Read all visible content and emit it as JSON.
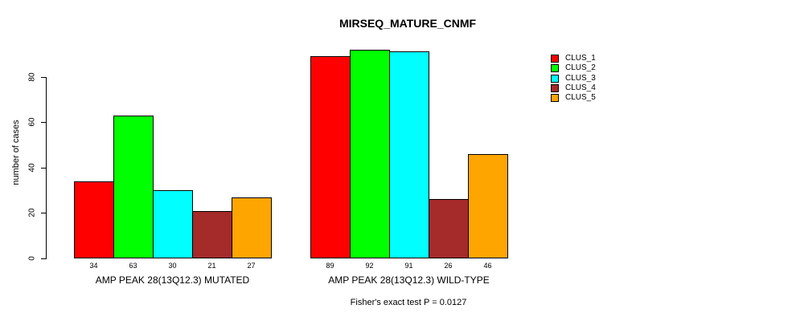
{
  "chart_data": {
    "type": "bar",
    "title": "MIRSEQ_MATURE_CNMF",
    "ylabel": "number of cases",
    "xlabel": "",
    "ylim": [
      0,
      92
    ],
    "yticks": [
      0,
      20,
      40,
      60,
      80
    ],
    "grid": false,
    "legend_position": "right",
    "categories": [
      "AMP PEAK 28(13Q12.3) MUTATED",
      "AMP PEAK 28(13Q12.3) WILD-TYPE"
    ],
    "series": [
      {
        "name": "CLUS_1",
        "color": "#ff0000",
        "values": [
          34,
          89
        ]
      },
      {
        "name": "CLUS_2",
        "color": "#00ff00",
        "values": [
          63,
          92
        ]
      },
      {
        "name": "CLUS_3",
        "color": "#00ffff",
        "values": [
          30,
          91
        ]
      },
      {
        "name": "CLUS_4",
        "color": "#a52a2a",
        "values": [
          21,
          26
        ]
      },
      {
        "name": "CLUS_5",
        "color": "#ffa500",
        "values": [
          27,
          46
        ]
      }
    ],
    "bar_value_labels": [
      [
        34,
        63,
        30,
        21,
        27
      ],
      [
        89,
        92,
        91,
        26,
        46
      ]
    ],
    "annotation": "Fisher's exact test P = 0.0127",
    "background_color": "#ffffff",
    "text_color": "#000000"
  }
}
